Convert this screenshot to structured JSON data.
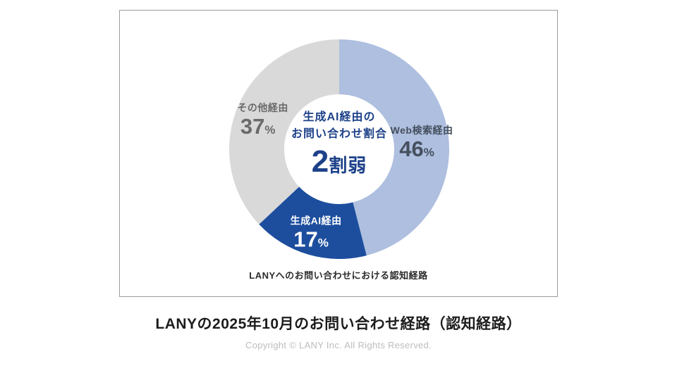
{
  "card": {
    "caption": "LANYへのお問い合わせにおける認知経路"
  },
  "chart_data": {
    "type": "pie",
    "title": "LANYへのお問い合わせにおける認知経路",
    "unit": "%",
    "start_angle_deg": -90,
    "direction": "clockwise",
    "inner_radius_ratio": 0.5,
    "legend_position": "on-slice",
    "slices": [
      {
        "id": "web-search",
        "name": "Web検索経由",
        "value": 46,
        "color": "#aebfdf",
        "label_color": "#454f5e"
      },
      {
        "id": "generative-ai",
        "name": "生成AI経由",
        "value": 17,
        "color": "#1d4e9e",
        "label_color": "#ffffff"
      },
      {
        "id": "other",
        "name": "その他経由",
        "value": 37,
        "color": "#d9d9d9",
        "label_color": "#6a6a6a"
      }
    ],
    "center_label": {
      "line1": "生成AI経由の",
      "line2": "お問い合わせ割合",
      "big_number": "2",
      "big_suffix": "割弱"
    }
  },
  "footer": {
    "title": "LANYの2025年10月のお問い合わせ経路（認知経路）",
    "copyright": "Copyright © LANY Inc. All Rights Reserved."
  }
}
